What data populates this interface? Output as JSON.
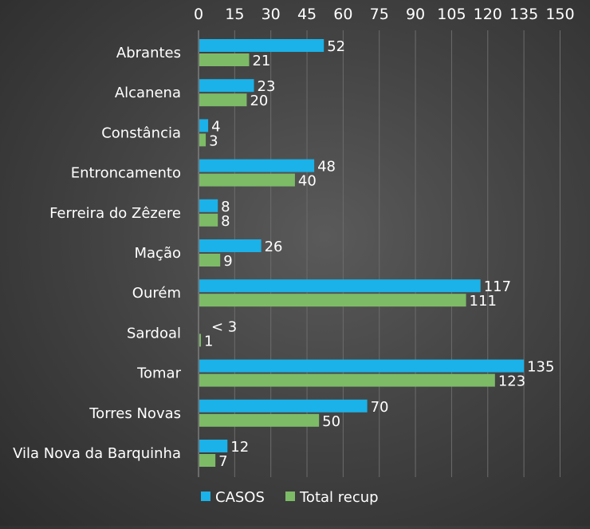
{
  "chart_data": {
    "type": "bar",
    "orientation": "horizontal",
    "categories": [
      "Abrantes",
      "Alcanena",
      "Constância",
      "Entroncamento",
      "Ferreira do Zêzere",
      "Mação",
      "Ourém",
      "Sardoal",
      "Tomar",
      "Torres Novas",
      "Vila Nova da Barquinha"
    ],
    "series": [
      {
        "name": "CASOS",
        "color": "#1ab2e8",
        "values": [
          52,
          23,
          4,
          48,
          8,
          26,
          117,
          0,
          135,
          70,
          12
        ],
        "labels": [
          "52",
          "23",
          "4",
          "48",
          "8",
          "26",
          "117",
          "< 3",
          "135",
          "70",
          "12"
        ]
      },
      {
        "name": "Total recup",
        "color": "#7dbb67",
        "values": [
          21,
          20,
          3,
          40,
          8,
          9,
          111,
          1,
          123,
          50,
          7
        ],
        "labels": [
          "21",
          "20",
          "3",
          "40",
          "8",
          "9",
          "111",
          "1",
          "123",
          "50",
          "7"
        ]
      }
    ],
    "xlim": [
      0,
      150
    ],
    "xticks": [
      "0",
      "15",
      "30",
      "45",
      "60",
      "75",
      "90",
      "105",
      "120",
      "135",
      "150"
    ],
    "tick_step": 15,
    "axis_position": "top",
    "grid": true,
    "legend_position": "bottom",
    "title": "",
    "xlabel": "",
    "ylabel": ""
  }
}
